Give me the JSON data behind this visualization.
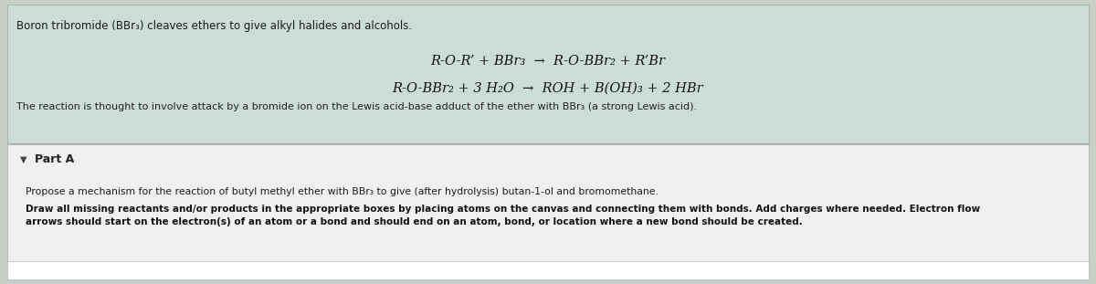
{
  "bg_color": "#c8cfc8",
  "top_panel_color": "#c8d8d4",
  "part_a_panel_color": "#f2f2f2",
  "title_text": "Boron tribromide (BBr₃) cleaves ethers to give alkyl halides and alcohols.",
  "eq1": "R-O-R’ + BBr₃  →  R-O-BBr₂ + R’Br",
  "eq2": "R-O-BBr₂ + 3 H₂O  →  ROH + B(OH)₃ + 2 HBr",
  "reaction_note": "The reaction is thought to involve attack by a bromide ion on the Lewis acid-base adduct of the ether with BBr₃ (a strong Lewis acid).",
  "part_a_label": "Part A",
  "propose_text": "Propose a mechanism for the reaction of butyl methyl ether with BBr₃ to give (after hydrolysis) butan-1-ol and bromomethane.",
  "draw_text_line1": "Draw all missing reactants and/or products in the appropriate boxes by placing atoms on the canvas and connecting them with bonds. Add charges where needed. Electron flow",
  "draw_text_line2": "arrows should start on the electron(s) of an atom or a bond and should end on an atom, bond, or location where a new bond should be created.",
  "figsize": [
    12.0,
    3.11
  ],
  "dpi": 100
}
